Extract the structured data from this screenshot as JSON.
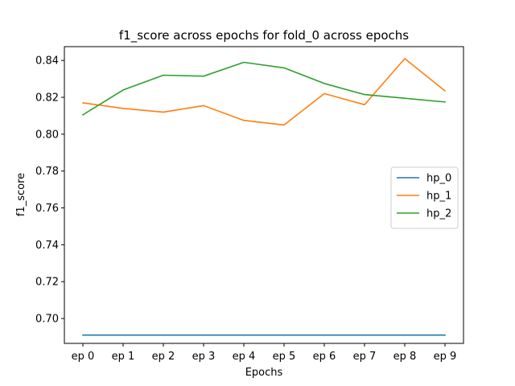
{
  "chart_data": {
    "type": "line",
    "title": "f1_score across epochs for fold_0 across epochs",
    "xlabel": "Epochs",
    "ylabel": "f1_score",
    "categories": [
      "ep 0",
      "ep 1",
      "ep 2",
      "ep 3",
      "ep 4",
      "ep 5",
      "ep 6",
      "ep 7",
      "ep 8",
      "ep 9"
    ],
    "ylim": [
      0.6865,
      0.8475
    ],
    "yticks": [
      0.7,
      0.72,
      0.74,
      0.76,
      0.78,
      0.8,
      0.82,
      0.84
    ],
    "ytick_labels": [
      "0.70",
      "0.72",
      "0.74",
      "0.76",
      "0.78",
      "0.80",
      "0.82",
      "0.84"
    ],
    "grid": false,
    "legend_position": "center-right",
    "series": [
      {
        "name": "hp_0",
        "color": "#1f77b4",
        "values": [
          0.691,
          0.691,
          0.691,
          0.691,
          0.691,
          0.691,
          0.691,
          0.691,
          0.691,
          0.691
        ]
      },
      {
        "name": "hp_1",
        "color": "#ff7f0e",
        "values": [
          0.817,
          0.814,
          0.812,
          0.8155,
          0.8075,
          0.805,
          0.822,
          0.816,
          0.841,
          0.8235
        ]
      },
      {
        "name": "hp_2",
        "color": "#2ca02c",
        "values": [
          0.8105,
          0.824,
          0.832,
          0.8315,
          0.839,
          0.836,
          0.8275,
          0.8215,
          0.8195,
          0.8175
        ]
      }
    ]
  }
}
